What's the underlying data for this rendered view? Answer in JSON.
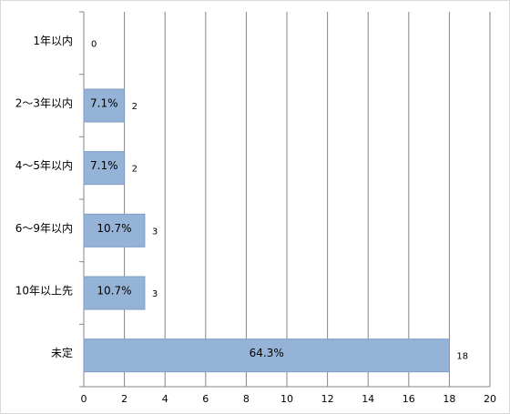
{
  "chart_data": {
    "type": "bar",
    "orientation": "horizontal",
    "categories": [
      "1年以内",
      "2～3年以内",
      "4～5年以内",
      "6～9年以内",
      "10年以上先",
      "未定"
    ],
    "values": [
      0,
      2,
      2,
      3,
      3,
      18
    ],
    "percent_labels": [
      null,
      "7.1%",
      "7.1%",
      "10.7%",
      "10.7%",
      "64.3%"
    ],
    "color": "#95b3d7",
    "xlim": [
      0,
      20
    ],
    "xticks": [
      0,
      2,
      4,
      6,
      8,
      10,
      12,
      14,
      16,
      18,
      20
    ],
    "grid": true
  }
}
